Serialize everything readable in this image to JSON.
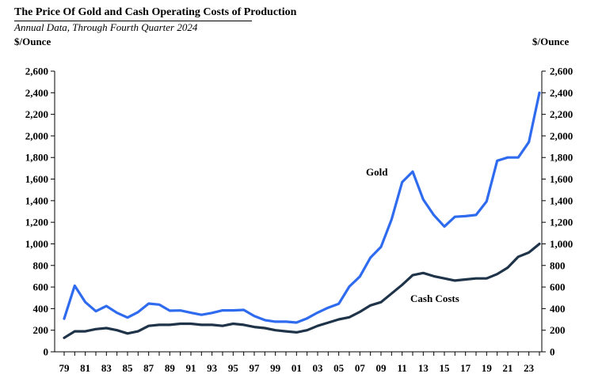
{
  "header": {
    "title": "The Price Of Gold and Cash Operating Costs of Production",
    "subtitle": "Annual Data, Through Fourth Quarter 2024"
  },
  "chart_data": {
    "type": "line",
    "title": "The Price Of Gold and Cash Operating Costs of Production",
    "subtitle": "Annual Data, Through Fourth Quarter 2024",
    "ylabel_left": "$/Ounce",
    "ylabel_right": "$/Ounce",
    "ylim": [
      0,
      2600
    ],
    "yticks": [
      0,
      200,
      400,
      600,
      800,
      1000,
      1200,
      1400,
      1600,
      1800,
      2000,
      2200,
      2400,
      2600
    ],
    "ytick_labels": [
      "0",
      "200",
      "400",
      "600",
      "800",
      "1,000",
      "1,200",
      "1,400",
      "1,600",
      "1,800",
      "2,000",
      "2,200",
      "2,400",
      "2,600"
    ],
    "xlim": [
      1979,
      2024
    ],
    "x": [
      1979,
      1980,
      1981,
      1982,
      1983,
      1984,
      1985,
      1986,
      1987,
      1988,
      1989,
      1990,
      1991,
      1992,
      1993,
      1994,
      1995,
      1996,
      1997,
      1998,
      1999,
      2000,
      2001,
      2002,
      2003,
      2004,
      2005,
      2006,
      2007,
      2008,
      2009,
      2010,
      2011,
      2012,
      2013,
      2014,
      2015,
      2016,
      2017,
      2018,
      2019,
      2020,
      2021,
      2022,
      2023,
      2024
    ],
    "xtick_labels": [
      "79",
      "81",
      "83",
      "85",
      "87",
      "89",
      "91",
      "93",
      "95",
      "97",
      "99",
      "01",
      "03",
      "05",
      "07",
      "09",
      "11",
      "13",
      "15",
      "17",
      "19",
      "21",
      "23"
    ],
    "xtick_years": [
      1979,
      1981,
      1983,
      1985,
      1987,
      1989,
      1991,
      1993,
      1995,
      1997,
      1999,
      2001,
      2003,
      2005,
      2007,
      2009,
      2011,
      2013,
      2015,
      2017,
      2019,
      2021,
      2023
    ],
    "series": [
      {
        "name": "Gold",
        "color": "#2f6bef",
        "values": [
          307,
          612,
          460,
          376,
          424,
          361,
          317,
          368,
          447,
          437,
          381,
          383,
          362,
          343,
          360,
          384,
          384,
          388,
          331,
          294,
          279,
          279,
          271,
          310,
          363,
          409,
          445,
          604,
          697,
          872,
          972,
          1225,
          1572,
          1669,
          1411,
          1266,
          1160,
          1251,
          1257,
          1268,
          1393,
          1770,
          1800,
          1800,
          1943,
          2400
        ]
      },
      {
        "name": "Cash Costs",
        "color": "#1f3349",
        "values": [
          130,
          190,
          190,
          210,
          220,
          200,
          170,
          190,
          240,
          250,
          250,
          260,
          260,
          250,
          250,
          240,
          260,
          250,
          230,
          220,
          200,
          190,
          180,
          200,
          240,
          270,
          300,
          320,
          370,
          430,
          460,
          540,
          620,
          710,
          730,
          700,
          680,
          660,
          670,
          680,
          680,
          720,
          780,
          880,
          920,
          1000
        ]
      }
    ],
    "annotations": [
      {
        "text": "Gold",
        "series": "Gold"
      },
      {
        "text": "Cash Costs",
        "series": "Cash Costs"
      }
    ]
  }
}
